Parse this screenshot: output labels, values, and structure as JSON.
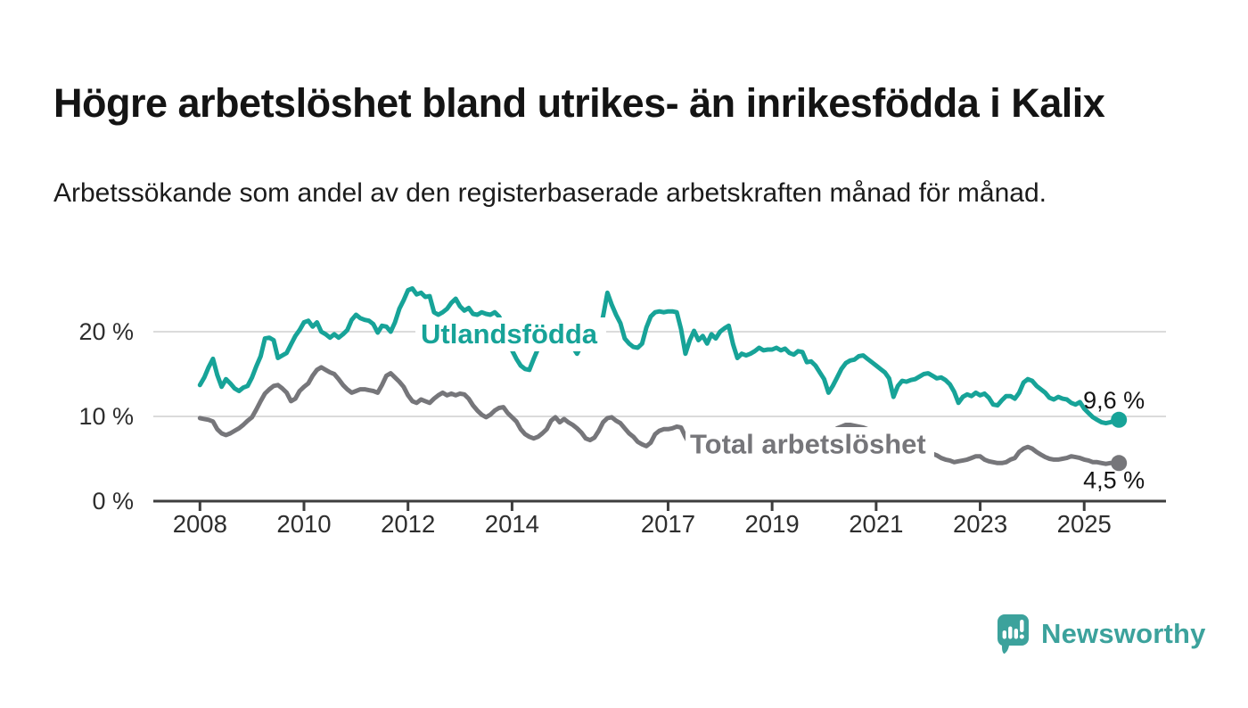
{
  "header": {
    "title": "Högre arbetslöshet bland utrikes- än inrikesfödda i Kalix",
    "subtitle": "Arbetssökande som andel av den registerbaserade arbetskraften månad för månad."
  },
  "chart_data": {
    "type": "line",
    "title": "Högre arbetslöshet bland utrikes- än inrikesfödda i Kalix",
    "xlabel": "",
    "ylabel": "",
    "xlim": [
      2007.1,
      2026.6
    ],
    "ylim": [
      0,
      28.6
    ],
    "grid": "horizontal-at-10-and-20",
    "x_ticks": [
      2008,
      2010,
      2012,
      2014,
      2017,
      2019,
      2021,
      2023,
      2025
    ],
    "x_tick_labels": [
      "2008",
      "2010",
      "2012",
      "2014",
      "2017",
      "2019",
      "2021",
      "2023",
      "2025"
    ],
    "y_ticks": [
      0,
      10,
      20
    ],
    "y_tick_labels": [
      "0 %",
      "10 %",
      "20 %"
    ],
    "legend_position": "inline-labels-on-lines",
    "series": [
      {
        "id": "total",
        "name": "Total arbetslöshet",
        "color": "#76767A",
        "end_value": 4.5,
        "end_label": "4,5 %",
        "start_year": 2008,
        "values_monthly": [
          9.8,
          9.7,
          9.6,
          9.4,
          8.5,
          8.0,
          7.8,
          8.0,
          8.3,
          8.6,
          9.0,
          9.5,
          9.9,
          10.8,
          11.8,
          12.7,
          13.2,
          13.6,
          13.7,
          13.3,
          12.8,
          11.8,
          12.1,
          13.0,
          13.5,
          13.9,
          14.8,
          15.5,
          15.8,
          15.5,
          15.2,
          15.0,
          14.4,
          13.7,
          13.2,
          12.8,
          13.0,
          13.2,
          13.2,
          13.1,
          13.0,
          12.8,
          13.7,
          14.8,
          15.1,
          14.6,
          14.1,
          13.5,
          12.5,
          11.8,
          11.6,
          12.0,
          11.8,
          11.6,
          12.1,
          12.5,
          12.8,
          12.5,
          12.7,
          12.5,
          12.7,
          12.6,
          12.1,
          11.3,
          10.7,
          10.2,
          9.9,
          10.2,
          10.7,
          11.0,
          11.1,
          10.4,
          9.9,
          9.4,
          8.5,
          7.9,
          7.6,
          7.4,
          7.6,
          8.0,
          8.5,
          9.5,
          9.9,
          9.3,
          9.7,
          9.3,
          9.0,
          8.6,
          8.1,
          7.4,
          7.2,
          7.5,
          8.3,
          9.3,
          9.8,
          9.9,
          9.5,
          9.2,
          8.6,
          8.0,
          7.6,
          7.0,
          6.7,
          6.5,
          6.9,
          7.9,
          8.3,
          8.5,
          8.5,
          8.6,
          8.8,
          8.7,
          7.6,
          6.7,
          6.4,
          6.3,
          6.4,
          6.6,
          6.8,
          6.9,
          6.7,
          6.4,
          6.0,
          6.1,
          6.2,
          6.4,
          6.5,
          6.6,
          6.8,
          6.9,
          7.0,
          6.9,
          6.8,
          6.7,
          6.5,
          6.6,
          6.8,
          6.9,
          7.0,
          7.1,
          7.2,
          7.3,
          7.4,
          7.3,
          7.2,
          7.6,
          8.2,
          8.6,
          8.8,
          9.0,
          9.0,
          8.9,
          8.8,
          8.7,
          8.5,
          8.3,
          8.2,
          7.9,
          7.6,
          7.4,
          7.2,
          7.0,
          6.9,
          6.7,
          6.6,
          6.4,
          6.2,
          6.0,
          5.9,
          5.6,
          5.4,
          5.1,
          4.9,
          4.8,
          4.6,
          4.7,
          4.8,
          4.9,
          5.1,
          5.3,
          5.3,
          4.9,
          4.7,
          4.6,
          4.5,
          4.5,
          4.6,
          4.9,
          5.1,
          5.8,
          6.2,
          6.4,
          6.2,
          5.8,
          5.5,
          5.2,
          5.0,
          4.9,
          4.9,
          5.0,
          5.1,
          5.3,
          5.2,
          5.1,
          4.9,
          4.8,
          4.6,
          4.6,
          4.5,
          4.4,
          4.5,
          4.5,
          4.5
        ]
      },
      {
        "id": "utlandsfodda",
        "name": "Utlandsfödda",
        "color": "#17A398",
        "end_value": 9.6,
        "end_label": "9,6 %",
        "start_year": 2008,
        "values_monthly": [
          13.7,
          14.6,
          15.8,
          16.8,
          14.9,
          13.5,
          14.4,
          13.9,
          13.3,
          13.0,
          13.4,
          13.6,
          14.6,
          15.9,
          17.1,
          19.2,
          19.3,
          19.0,
          16.9,
          17.2,
          17.5,
          18.5,
          19.5,
          20.2,
          21.1,
          21.3,
          20.6,
          21.1,
          20.0,
          19.7,
          19.3,
          19.7,
          19.3,
          19.7,
          20.2,
          21.4,
          22.0,
          21.6,
          21.4,
          21.3,
          20.9,
          19.9,
          20.7,
          20.6,
          20.0,
          21.1,
          22.7,
          23.7,
          24.9,
          25.1,
          24.4,
          24.6,
          24.1,
          24.2,
          22.3,
          22.0,
          22.3,
          22.7,
          23.4,
          23.9,
          23.0,
          22.5,
          22.8,
          22.1,
          22.0,
          22.3,
          22.1,
          22.0,
          22.3,
          21.8,
          20.8,
          19.5,
          17.8,
          16.8,
          16.0,
          15.6,
          15.5,
          16.8,
          18.0,
          18.5,
          18.2,
          18.8,
          18.9,
          18.8,
          18.8,
          19.0,
          18.2,
          17.4,
          18.4,
          18.8,
          18.4,
          19.0,
          19.9,
          21.8,
          24.6,
          23.2,
          22.0,
          21.0,
          19.2,
          18.6,
          18.2,
          18.1,
          18.6,
          20.5,
          21.8,
          22.3,
          22.4,
          22.3,
          22.4,
          22.4,
          22.3,
          20.3,
          17.4,
          19.0,
          20.1,
          19.0,
          19.5,
          18.6,
          19.7,
          19.2,
          20.0,
          20.4,
          20.7,
          18.5,
          16.9,
          17.4,
          17.2,
          17.4,
          17.7,
          18.1,
          17.8,
          17.9,
          17.9,
          18.1,
          17.8,
          18.0,
          17.5,
          17.3,
          17.7,
          17.6,
          16.4,
          16.5,
          16.0,
          15.2,
          14.4,
          12.8,
          13.6,
          14.6,
          15.6,
          16.3,
          16.6,
          16.7,
          17.1,
          17.2,
          16.8,
          16.4,
          16.0,
          15.6,
          15.2,
          14.5,
          12.3,
          13.6,
          14.2,
          14.1,
          14.3,
          14.4,
          14.7,
          15.0,
          15.1,
          14.8,
          14.5,
          14.6,
          14.3,
          13.8,
          12.9,
          11.6,
          12.3,
          12.6,
          12.4,
          12.8,
          12.5,
          12.7,
          12.2,
          11.4,
          11.3,
          11.9,
          12.4,
          12.4,
          12.1,
          12.8,
          14.0,
          14.4,
          14.2,
          13.6,
          13.2,
          12.8,
          12.2,
          12.0,
          12.3,
          12.1,
          12.0,
          11.6,
          11.4,
          11.7,
          10.9,
          10.4,
          9.9,
          9.6,
          9.3,
          9.2,
          9.3,
          9.5,
          9.6
        ]
      }
    ],
    "colors": {
      "foreign_born_line": "#17A398",
      "total_line": "#76767A",
      "gridline": "#DBDBDB",
      "axis": "#3D3D3D",
      "text": "#141414"
    }
  },
  "logo": {
    "text": "Newsworthy",
    "color": "#3CA29C",
    "icon": "newsworthy-speech-bubble-bar-chart-icon"
  }
}
